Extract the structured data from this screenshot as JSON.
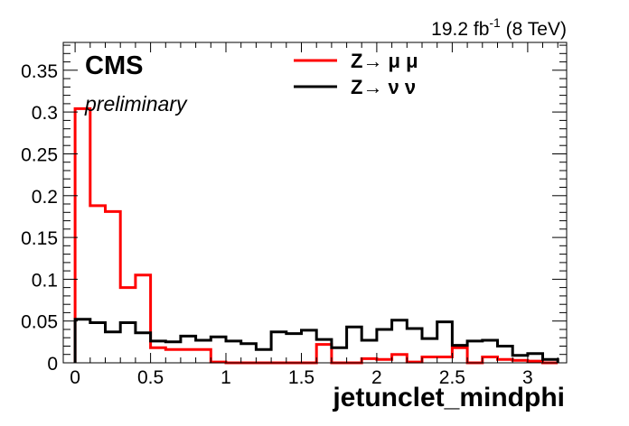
{
  "header": {
    "lumi_prefix": "19.2 fb",
    "lumi_sup": "-1",
    "lumi_suffix": " (8 TeV)"
  },
  "labels": {
    "experiment": "CMS",
    "status": "preliminary"
  },
  "colors": {
    "zmumu": "#ff0000",
    "znunu": "#000000",
    "axis": "#000000",
    "background": "#ffffff"
  },
  "chart_data": {
    "type": "histogram",
    "xlabel": "jetunclet_mindphi",
    "ylabel": "",
    "xlim": [
      -0.0785,
      3.2585
    ],
    "ylim": [
      0,
      0.3833
    ],
    "bin_width": 0.1,
    "bin_low_edges": [
      0.0,
      0.1,
      0.2,
      0.3,
      0.4,
      0.5,
      0.6,
      0.7,
      0.8,
      0.9,
      1.0,
      1.1,
      1.2,
      1.3,
      1.4,
      1.5,
      1.6,
      1.7,
      1.8,
      1.9,
      2.0,
      2.1,
      2.2,
      2.3,
      2.4,
      2.5,
      2.6,
      2.7,
      2.8,
      2.9,
      3.0,
      3.1
    ],
    "xticks": [
      0,
      0.5,
      1,
      1.5,
      2,
      2.5,
      3
    ],
    "xtick_labels": [
      "0",
      "0.5",
      "1",
      "1.5",
      "2",
      "2.5",
      "3"
    ],
    "yticks": [
      0,
      0.05,
      0.1,
      0.15,
      0.2,
      0.25,
      0.3,
      0.35
    ],
    "ytick_labels": [
      "0",
      "0.05",
      "0.1",
      "0.15",
      "0.2",
      "0.25",
      "0.3",
      "0.35"
    ],
    "series": [
      {
        "name": "Z→ μ μ",
        "color": "#ff0000",
        "values": [
          0.304,
          0.188,
          0.181,
          0.09,
          0.105,
          0.018,
          0.016,
          0.016,
          0.016,
          0.001,
          0.0,
          0.0,
          0.0,
          0.0,
          0.0,
          0.0,
          0.022,
          0.0,
          0.0,
          0.005,
          0.004,
          0.01,
          0.001,
          0.007,
          0.007,
          0.018,
          0.0,
          0.007,
          0.004,
          0.003,
          0.002,
          0.0
        ]
      },
      {
        "name": "Z→ ν ν",
        "color": "#000000",
        "values": [
          0.052,
          0.048,
          0.037,
          0.048,
          0.036,
          0.026,
          0.025,
          0.032,
          0.027,
          0.031,
          0.026,
          0.023,
          0.016,
          0.037,
          0.035,
          0.039,
          0.028,
          0.018,
          0.043,
          0.027,
          0.04,
          0.051,
          0.041,
          0.029,
          0.049,
          0.021,
          0.026,
          0.027,
          0.02,
          0.009,
          0.011,
          0.004
        ]
      }
    ]
  }
}
